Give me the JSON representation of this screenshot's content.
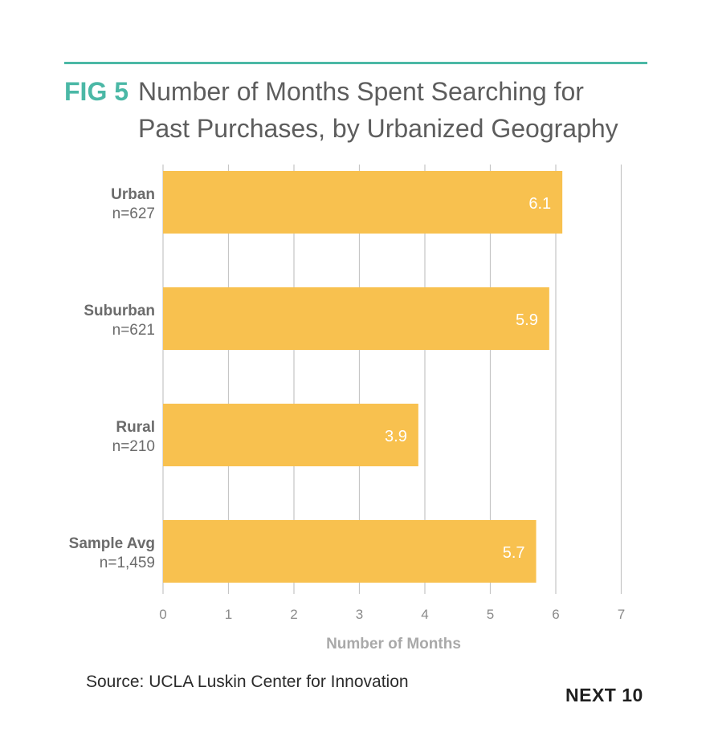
{
  "header": {
    "fig_label": "FIG 5",
    "title_line1": "Number of Months Spent Searching for",
    "title_line2": "Past Purchases, by Urbanized Geography"
  },
  "colors": {
    "accent": "#4bb8a6",
    "bar": "#f8c14f",
    "bar_label": "#ffffff",
    "grid": "#c6c6c6",
    "axis_text": "#8a8a8a",
    "category_text": "#6b6b6b"
  },
  "chart_data": {
    "type": "bar",
    "orientation": "horizontal",
    "categories": [
      "Urban",
      "Suburban",
      "Rural",
      "Sample Avg"
    ],
    "sample_sizes": [
      "n=627",
      "n=621",
      "n=210",
      "n=1,459"
    ],
    "values": [
      6.1,
      5.9,
      3.9,
      5.7
    ],
    "value_labels": [
      "6.1",
      "5.9",
      "3.9",
      "5.7"
    ],
    "xlabel": "Number of Months",
    "xlim": [
      0,
      7
    ],
    "xticks": [
      "0",
      "1",
      "2",
      "3",
      "4",
      "5",
      "6",
      "7"
    ],
    "grid": true
  },
  "footer": {
    "source": "Source: UCLA Luskin Center for Innovation",
    "brand": "NEXT 10"
  }
}
